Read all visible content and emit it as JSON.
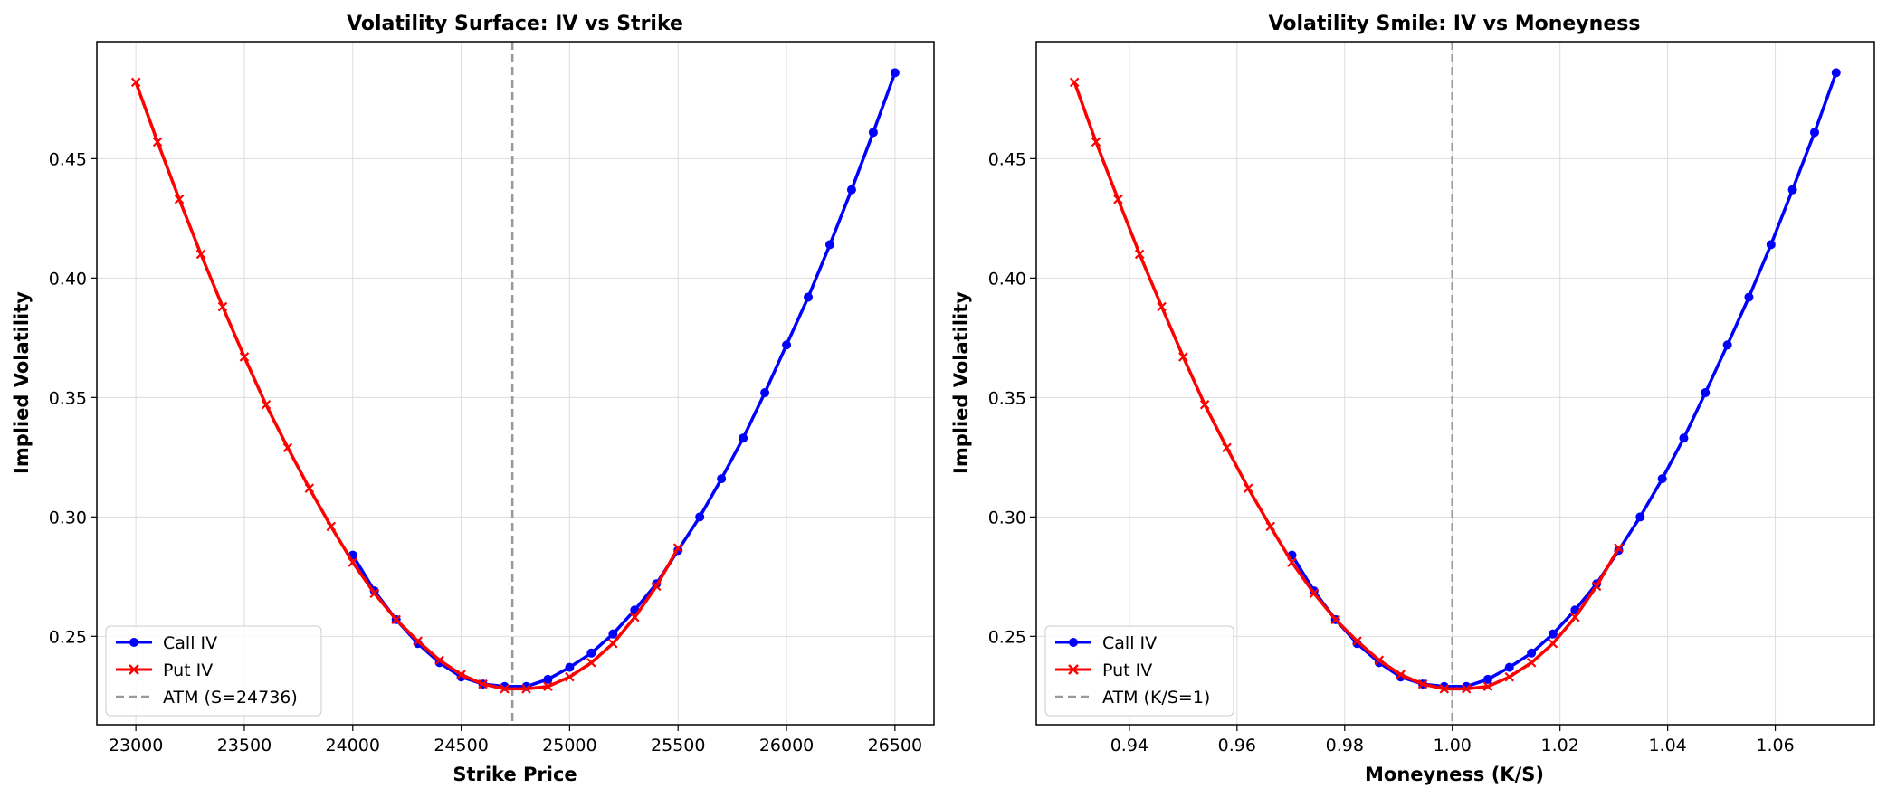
{
  "colors": {
    "call": "#0000ff",
    "put": "#ff0000",
    "atm": "#999999",
    "grid": "#dddddd"
  },
  "chart_data": [
    {
      "type": "line",
      "title": "Volatility Surface: IV vs Strike",
      "xlabel": "Strike Price",
      "ylabel": "Implied Volatility",
      "xlim": [
        22820,
        26680
      ],
      "ylim": [
        0.213,
        0.499
      ],
      "xticks": [
        23000,
        23500,
        24000,
        24500,
        25000,
        25500,
        26000,
        26500
      ],
      "xtick_labels": [
        "23000",
        "23500",
        "24000",
        "24500",
        "25000",
        "25500",
        "26000",
        "26500"
      ],
      "yticks": [
        0.25,
        0.3,
        0.35,
        0.4,
        0.45
      ],
      "ytick_labels": [
        "0.25",
        "0.30",
        "0.35",
        "0.40",
        "0.45"
      ],
      "grid": true,
      "legend_position": "lower-left",
      "vline": {
        "x": 24736,
        "label": "ATM (S=24736)"
      },
      "series": [
        {
          "name": "Call IV",
          "marker": "circle",
          "x": [
            24000,
            24100,
            24200,
            24300,
            24400,
            24500,
            24600,
            24700,
            24800,
            24900,
            25000,
            25100,
            25200,
            25300,
            25400,
            25500,
            25600,
            25700,
            25800,
            25900,
            26000,
            26100,
            26200,
            26300,
            26400,
            26500
          ],
          "y": [
            0.284,
            0.269,
            0.257,
            0.247,
            0.239,
            0.233,
            0.23,
            0.229,
            0.229,
            0.232,
            0.237,
            0.243,
            0.251,
            0.261,
            0.272,
            0.286,
            0.3,
            0.316,
            0.333,
            0.352,
            0.372,
            0.392,
            0.414,
            0.437,
            0.461,
            0.486
          ]
        },
        {
          "name": "Put IV",
          "marker": "x",
          "x": [
            23000,
            23100,
            23200,
            23300,
            23400,
            23500,
            23600,
            23700,
            23800,
            23900,
            24000,
            24100,
            24200,
            24300,
            24400,
            24500,
            24600,
            24700,
            24800,
            24900,
            25000,
            25100,
            25200,
            25300,
            25400,
            25500
          ],
          "y": [
            0.482,
            0.457,
            0.433,
            0.41,
            0.388,
            0.367,
            0.347,
            0.329,
            0.312,
            0.296,
            0.281,
            0.268,
            0.257,
            0.248,
            0.24,
            0.234,
            0.23,
            0.228,
            0.228,
            0.229,
            0.233,
            0.239,
            0.247,
            0.258,
            0.271,
            0.287
          ]
        }
      ]
    },
    {
      "type": "line",
      "title": "Volatility Smile: IV vs Moneyness",
      "xlabel": "Moneyness (K/S)",
      "ylabel": "Implied Volatility",
      "xlim": [
        0.9227,
        1.0784
      ],
      "ylim": [
        0.213,
        0.499
      ],
      "xticks": [
        0.94,
        0.96,
        0.98,
        1.0,
        1.02,
        1.04,
        1.06
      ],
      "xtick_labels": [
        "0.94",
        "0.96",
        "0.98",
        "1.00",
        "1.02",
        "1.04",
        "1.06"
      ],
      "yticks": [
        0.25,
        0.3,
        0.35,
        0.4,
        0.45
      ],
      "ytick_labels": [
        "0.25",
        "0.30",
        "0.35",
        "0.40",
        "0.45"
      ],
      "grid": true,
      "legend_position": "lower-left",
      "vline": {
        "x": 1.0,
        "label": "ATM (K/S=1)"
      },
      "series": [
        {
          "name": "Call IV",
          "marker": "circle",
          "x": [
            0.9702,
            0.9743,
            0.9783,
            0.9823,
            0.9864,
            0.9904,
            0.9945,
            0.9985,
            1.0026,
            1.0066,
            1.0106,
            1.0147,
            1.0187,
            1.0228,
            1.0268,
            1.0309,
            1.0349,
            1.039,
            1.043,
            1.047,
            1.0511,
            1.0551,
            1.0592,
            1.0632,
            1.0673,
            1.0713
          ],
          "y": [
            0.284,
            0.269,
            0.257,
            0.247,
            0.239,
            0.233,
            0.23,
            0.229,
            0.229,
            0.232,
            0.237,
            0.243,
            0.251,
            0.261,
            0.272,
            0.286,
            0.3,
            0.316,
            0.333,
            0.352,
            0.372,
            0.392,
            0.414,
            0.437,
            0.461,
            0.486
          ]
        },
        {
          "name": "Put IV",
          "marker": "x",
          "x": [
            0.9298,
            0.9338,
            0.9379,
            0.9419,
            0.946,
            0.95,
            0.954,
            0.9581,
            0.9621,
            0.9662,
            0.9702,
            0.9743,
            0.9783,
            0.9823,
            0.9864,
            0.9904,
            0.9945,
            0.9985,
            1.0026,
            1.0066,
            1.0106,
            1.0147,
            1.0187,
            1.0228,
            1.0268,
            1.0309
          ],
          "y": [
            0.482,
            0.457,
            0.433,
            0.41,
            0.388,
            0.367,
            0.347,
            0.329,
            0.312,
            0.296,
            0.281,
            0.268,
            0.257,
            0.248,
            0.24,
            0.234,
            0.23,
            0.228,
            0.228,
            0.229,
            0.233,
            0.239,
            0.247,
            0.258,
            0.271,
            0.287
          ]
        }
      ]
    }
  ]
}
